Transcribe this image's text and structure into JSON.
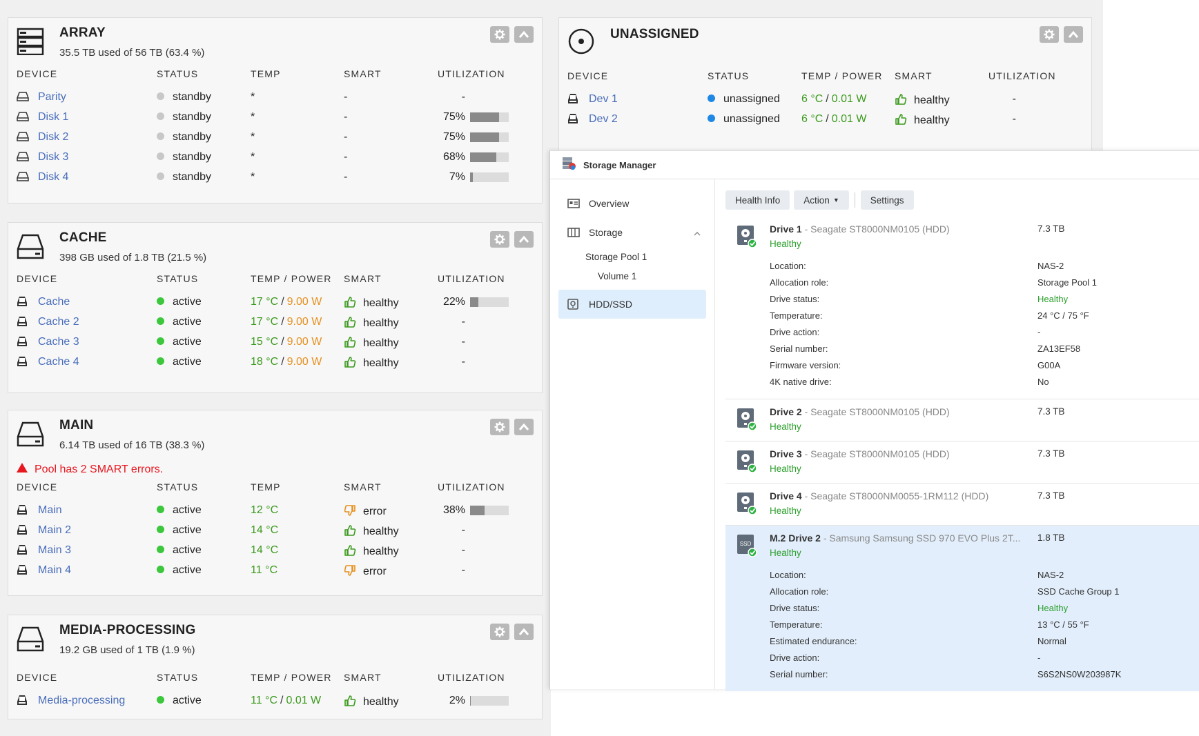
{
  "array": {
    "title": "ARRAY",
    "summary": "35.5 TB used of 56 TB (63.4 %)",
    "headers": [
      "DEVICE",
      "STATUS",
      "TEMP",
      "SMART",
      "UTILIZATION"
    ],
    "rows": [
      {
        "device": "Parity",
        "status": "standby",
        "temp": "*",
        "smart": "-",
        "util": "-"
      },
      {
        "device": "Disk 1",
        "status": "standby",
        "temp": "*",
        "smart": "-",
        "util": "75%",
        "util_value": 0.75
      },
      {
        "device": "Disk 2",
        "status": "standby",
        "temp": "*",
        "smart": "-",
        "util": "75%",
        "util_value": 0.75
      },
      {
        "device": "Disk 3",
        "status": "standby",
        "temp": "*",
        "smart": "-",
        "util": "68%",
        "util_value": 0.68
      },
      {
        "device": "Disk 4",
        "status": "standby",
        "temp": "*",
        "smart": "-",
        "util": "7%",
        "util_value": 0.07
      }
    ]
  },
  "cache": {
    "title": "CACHE",
    "summary": "398 GB used of 1.8 TB (21.5 %)",
    "headers": [
      "DEVICE",
      "STATUS",
      "TEMP / POWER",
      "SMART",
      "UTILIZATION"
    ],
    "rows": [
      {
        "device": "Cache",
        "status": "active",
        "temp": "17 °C",
        "sep": "/",
        "power": "9.00 W",
        "smart": "healthy",
        "util": "22%",
        "util_value": 0.22
      },
      {
        "device": "Cache 2",
        "status": "active",
        "temp": "17 °C",
        "sep": "/",
        "power": "9.00 W",
        "smart": "healthy",
        "util": "-"
      },
      {
        "device": "Cache 3",
        "status": "active",
        "temp": "15 °C",
        "sep": "/",
        "power": "9.00 W",
        "smart": "healthy",
        "util": "-"
      },
      {
        "device": "Cache 4",
        "status": "active",
        "temp": "18 °C",
        "sep": "/",
        "power": "9.00 W",
        "smart": "healthy",
        "util": "-"
      }
    ]
  },
  "main": {
    "title": "MAIN",
    "summary": "6.14 TB used of 16 TB (38.3 %)",
    "warning": "Pool has 2 SMART errors.",
    "headers": [
      "DEVICE",
      "STATUS",
      "TEMP",
      "SMART",
      "UTILIZATION"
    ],
    "rows": [
      {
        "device": "Main",
        "status": "active",
        "temp": "12 °C",
        "smart": "error",
        "util": "38%",
        "util_value": 0.38
      },
      {
        "device": "Main 2",
        "status": "active",
        "temp": "14 °C",
        "smart": "healthy",
        "util": "-"
      },
      {
        "device": "Main 3",
        "status": "active",
        "temp": "14 °C",
        "smart": "healthy",
        "util": "-"
      },
      {
        "device": "Main 4",
        "status": "active",
        "temp": "11 °C",
        "smart": "error",
        "util": "-"
      }
    ]
  },
  "media": {
    "title": "MEDIA-PROCESSING",
    "summary": "19.2 GB used of 1 TB (1.9 %)",
    "headers": [
      "DEVICE",
      "STATUS",
      "TEMP / POWER",
      "SMART",
      "UTILIZATION"
    ],
    "rows": [
      {
        "device": "Media-processing",
        "status": "active",
        "temp": "11 °C",
        "sep": "/",
        "power": "0.01 W",
        "smart": "healthy",
        "util": "2%",
        "util_value": 0.02
      }
    ]
  },
  "unassigned": {
    "title": "UNASSIGNED",
    "headers": [
      "DEVICE",
      "STATUS",
      "TEMP / POWER",
      "SMART",
      "UTILIZATION"
    ],
    "rows": [
      {
        "device": "Dev 1",
        "status": "unassigned",
        "temp": "6 °C",
        "sep": "/",
        "power": "0.01 W",
        "smart": "healthy",
        "util": "-"
      },
      {
        "device": "Dev 2",
        "status": "unassigned",
        "temp": "6 °C",
        "sep": "/",
        "power": "0.01 W",
        "smart": "healthy",
        "util": "-"
      }
    ]
  },
  "storage_manager": {
    "title": "Storage Manager",
    "nav": {
      "overview": "Overview",
      "storage": "Storage",
      "pool": "Storage Pool 1",
      "volume": "Volume 1",
      "hdd": "HDD/SSD"
    },
    "toolbar": {
      "health": "Health Info",
      "action": "Action",
      "settings": "Settings"
    },
    "drives": [
      {
        "name": "Drive 1",
        "model": " - Seagate ST8000NM0105 (HDD)",
        "size": "7.3 TB",
        "health": "Healthy",
        "type": "hdd",
        "details": [
          {
            "k": "Location:",
            "v": "NAS-2"
          },
          {
            "k": "Allocation role:",
            "v": "Storage Pool 1"
          },
          {
            "k": "Drive status:",
            "v": "Healthy"
          },
          {
            "k": "Temperature:",
            "v": "24 °C / 75 °F"
          },
          {
            "k": "Drive action:",
            "v": "-"
          },
          {
            "k": "Serial number:",
            "v": "ZA13EF58"
          },
          {
            "k": "Firmware version:",
            "v": "G00A"
          },
          {
            "k": "4K native drive:",
            "v": "No"
          }
        ]
      },
      {
        "name": "Drive 2",
        "model": " - Seagate ST8000NM0105 (HDD)",
        "size": "7.3 TB",
        "health": "Healthy",
        "type": "hdd",
        "details": []
      },
      {
        "name": "Drive 3",
        "model": " - Seagate ST8000NM0105 (HDD)",
        "size": "7.3 TB",
        "health": "Healthy",
        "type": "hdd",
        "details": []
      },
      {
        "name": "Drive 4",
        "model": " - Seagate ST8000NM0055-1RM112 (HDD)",
        "size": "7.3 TB",
        "health": "Healthy",
        "type": "hdd",
        "details": []
      },
      {
        "name": "M.2 Drive 2",
        "model": " - Samsung Samsung SSD 970 EVO Plus 2T...",
        "size": "1.8 TB",
        "health": "Healthy",
        "type": "ssd",
        "selected": true,
        "details": [
          {
            "k": "Location:",
            "v": "NAS-2"
          },
          {
            "k": "Allocation role:",
            "v": "SSD Cache Group 1"
          },
          {
            "k": "Drive status:",
            "v": "Healthy"
          },
          {
            "k": "Temperature:",
            "v": "13 °C / 55 °F"
          },
          {
            "k": "Estimated endurance:",
            "v": "Normal"
          },
          {
            "k": "Drive action:",
            "v": "-"
          },
          {
            "k": "Serial number:",
            "v": "S6S2NS0W203987K"
          }
        ]
      }
    ]
  },
  "colors": {
    "link": "#486dba",
    "green_temp": "#3c9a1e",
    "power_orange": "#e6901f",
    "status_green": "#3cc73c",
    "status_grey": "#c8c8c8",
    "status_blue": "#1e88e5",
    "warning_red": "#e8161f",
    "healthy_green": "#2a9d2a",
    "selected_bg": "#e2eefb"
  },
  "icons": {
    "array": "server-stack-icon",
    "cache": "hard-drive-icon",
    "main": "hard-drive-icon",
    "media": "hard-drive-icon",
    "unassigned": "disc-icon",
    "settings": "gear-icon",
    "collapse": "chevron-up-icon"
  }
}
